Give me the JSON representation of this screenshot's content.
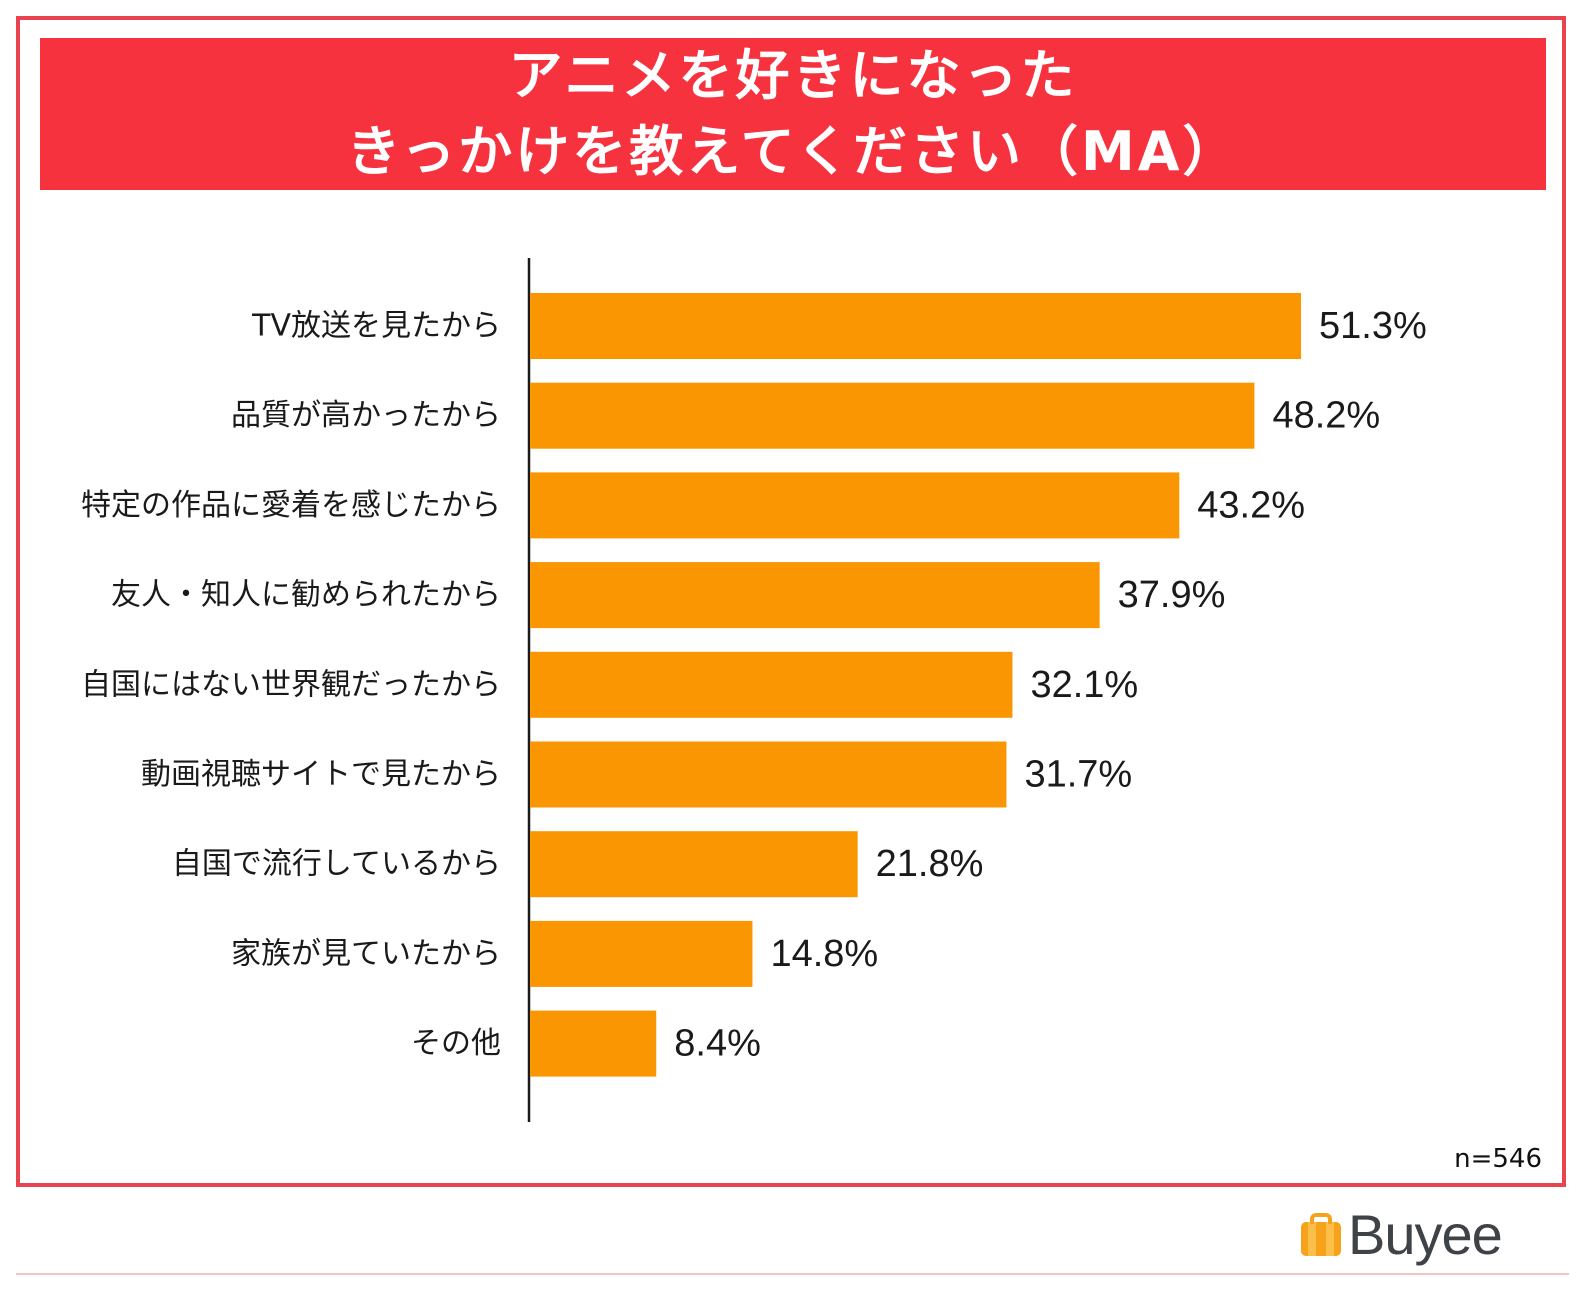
{
  "title_lines": [
    "アニメを好きになった",
    "きっかけを教えてください（MA）"
  ],
  "note": "n=546",
  "logo_text": "Buyee",
  "colors": {
    "bar": "#fb9603",
    "banner": "#f7323f",
    "border": "#e8434e",
    "text": "#1a1a1a"
  },
  "chart_data": {
    "type": "bar",
    "orientation": "horizontal",
    "categories": [
      "TV放送を見たから",
      "品質が高かったから",
      "特定の作品に愛着を感じたから",
      "友人・知人に勧められたから",
      "自国にはない世界観だったから",
      "動画視聴サイトで見たから",
      "自国で流行しているから",
      "家族が見ていたから",
      "その他"
    ],
    "values": [
      51.3,
      48.2,
      43.2,
      37.9,
      32.1,
      31.7,
      21.8,
      14.8,
      8.4
    ],
    "value_labels": [
      "51.3%",
      "48.2%",
      "43.2%",
      "37.9%",
      "32.1%",
      "31.7%",
      "21.8%",
      "14.8%",
      "8.4%"
    ],
    "unit": "%",
    "grid": false
  }
}
